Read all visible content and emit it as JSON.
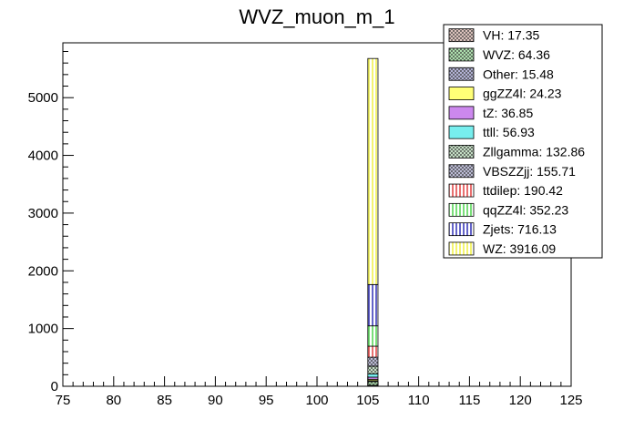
{
  "chart_data": {
    "type": "bar",
    "stacked": true,
    "title": "WVZ_muon_m_1",
    "xlabel": "",
    "ylabel": "",
    "xlim": [
      75,
      125
    ],
    "ylim": [
      0,
      5950
    ],
    "bin": [
      105,
      106
    ],
    "x_ticks": [
      75,
      80,
      85,
      90,
      95,
      100,
      105,
      110,
      115,
      120,
      125
    ],
    "y_ticks": [
      0,
      1000,
      2000,
      3000,
      4000,
      5000
    ],
    "grid": false,
    "legend_position": "top-right",
    "series": [
      {
        "name": "VH",
        "label": "VH: 17.35",
        "value": 17.35,
        "color": "#d9a89c",
        "hatch": "cross"
      },
      {
        "name": "WVZ",
        "label": "WVZ: 64.36",
        "value": 64.36,
        "color": "#7fe07f",
        "hatch": "cross"
      },
      {
        "name": "Other",
        "label": "Other: 15.48",
        "value": 15.48,
        "color": "#8888cc",
        "hatch": "cross"
      },
      {
        "name": "ggZZ4l",
        "label": "ggZZ4l: 24.23",
        "value": 24.23,
        "color": "#ffff77",
        "hatch": "solid"
      },
      {
        "name": "tZ",
        "label": "tZ: 36.85",
        "value": 36.85,
        "color": "#cc88ee",
        "hatch": "solid"
      },
      {
        "name": "ttll",
        "label": "ttll: 56.93",
        "value": 56.93,
        "color": "#77eeee",
        "hatch": "solid"
      },
      {
        "name": "Zllgamma",
        "label": "Zllgamma: 132.86",
        "value": 132.86,
        "color": "#aaddaa",
        "hatch": "cross"
      },
      {
        "name": "VBSZZjj",
        "label": "VBSZZjj: 155.71",
        "value": 155.71,
        "color": "#9999cc",
        "hatch": "cross"
      },
      {
        "name": "ttdilep",
        "label": "ttdilep: 190.42",
        "value": 190.42,
        "color": "#dd2222",
        "hatch": "vertical"
      },
      {
        "name": "qqZZ4l",
        "label": "qqZZ4l: 352.23",
        "value": 352.23,
        "color": "#33cc33",
        "hatch": "vertical"
      },
      {
        "name": "Zjets",
        "label": "Zjets: 716.13",
        "value": 716.13,
        "color": "#1111aa",
        "hatch": "vertical"
      },
      {
        "name": "WZ",
        "label": "WZ: 3916.09",
        "value": 3916.09,
        "color": "#eeee22",
        "hatch": "vertical"
      }
    ]
  }
}
